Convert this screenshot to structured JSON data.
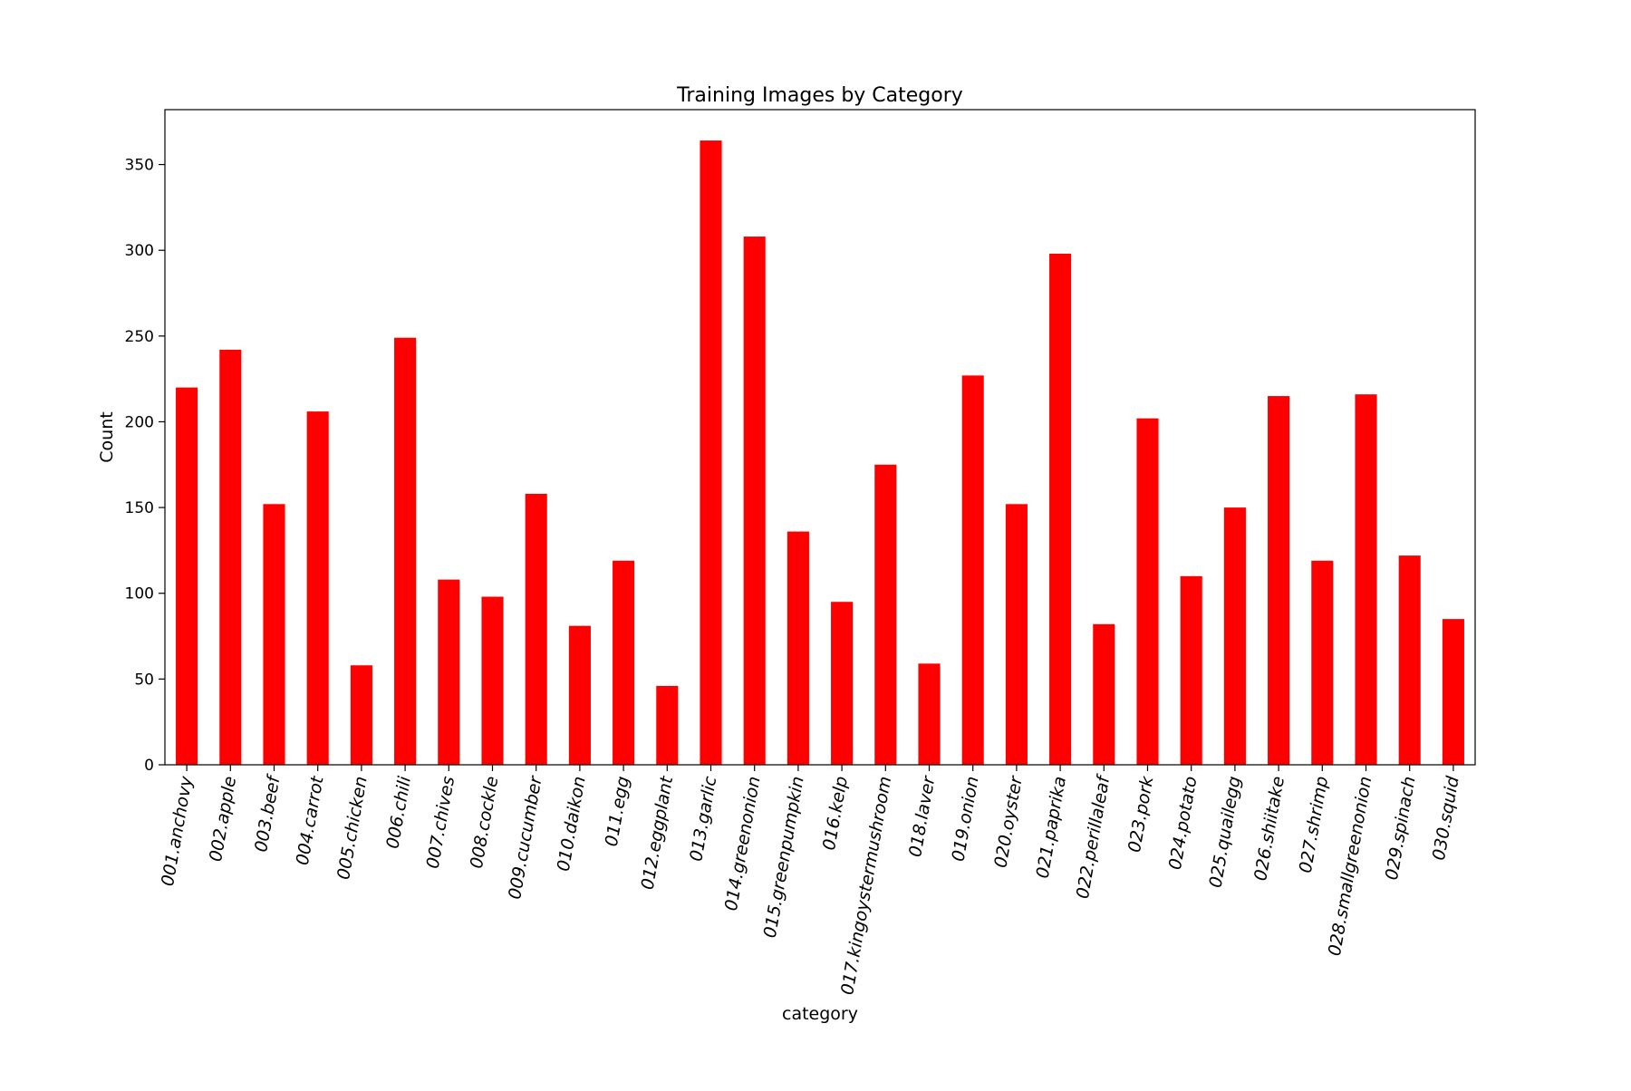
{
  "chart_data": {
    "type": "bar",
    "title": "Training Images by Category",
    "xlabel": "category",
    "ylabel": "Count",
    "ylim": [
      0,
      382
    ],
    "yticks": [
      0,
      50,
      100,
      150,
      200,
      250,
      300,
      350
    ],
    "grid": false,
    "legend": "none",
    "bar_color": "#ff0000",
    "categories": [
      "001.anchovy",
      "002.apple",
      "003.beef",
      "004.carrot",
      "005.chicken",
      "006.chili",
      "007.chives",
      "008.cockle",
      "009.cucumber",
      "010.daikon",
      "011.egg",
      "012.eggplant",
      "013.garlic",
      "014.greenonion",
      "015.greenpumpkin",
      "016.kelp",
      "017.kingoystermushroom",
      "018.laver",
      "019.onion",
      "020.oyster",
      "021.paprika",
      "022.perillaleaf",
      "023.pork",
      "024.potato",
      "025.quailegg",
      "026.shiitake",
      "027.shrimp",
      "028.smallgreenonion",
      "029.spinach",
      "030.squid"
    ],
    "values": [
      220,
      242,
      152,
      206,
      58,
      249,
      108,
      98,
      158,
      81,
      119,
      46,
      364,
      308,
      136,
      95,
      175,
      59,
      227,
      152,
      298,
      82,
      202,
      110,
      150,
      215,
      119,
      216,
      122,
      85
    ]
  }
}
